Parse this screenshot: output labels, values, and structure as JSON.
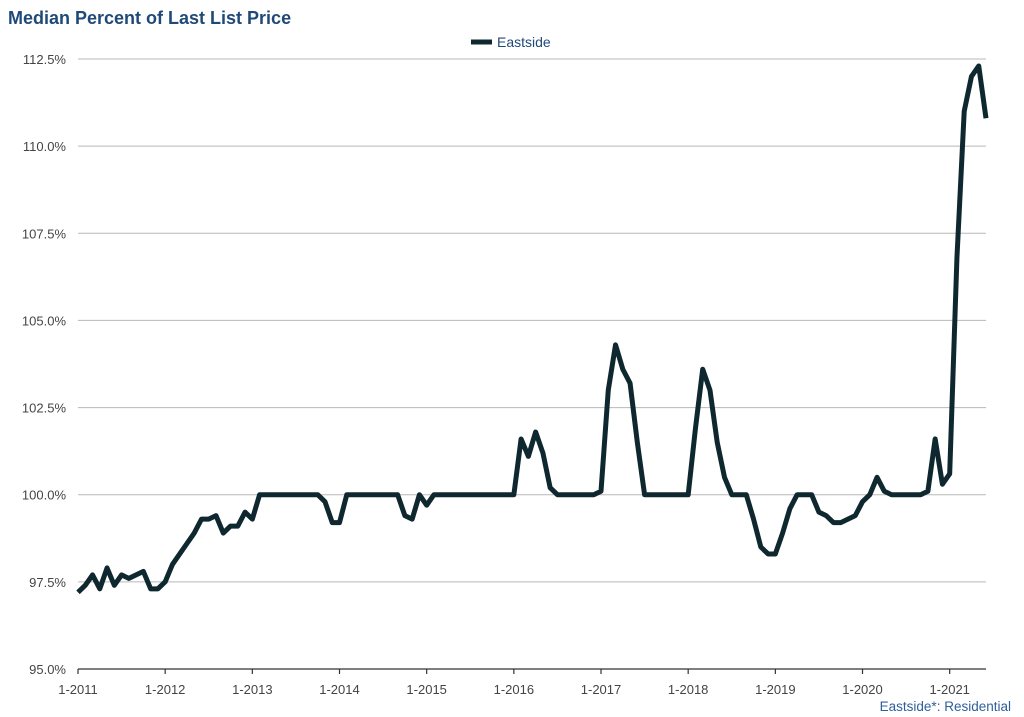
{
  "colors": {
    "title": "#1f4a78",
    "series": "#0f2830",
    "grid": "#b8b8b8",
    "axis": "#333333",
    "tick_text": "#444444",
    "footer": "#2f5f99"
  },
  "chart_data": {
    "type": "line",
    "title": "Median Percent of Last List Price",
    "xlabel": "",
    "ylabel": "",
    "legend": {
      "position": "top-center"
    },
    "grid": {
      "y": true,
      "x": false
    },
    "ylim": [
      95.0,
      112.5
    ],
    "y_ticks": [
      95.0,
      97.5,
      100.0,
      102.5,
      105.0,
      107.5,
      110.0,
      112.5
    ],
    "y_tick_labels": [
      "95.0%",
      "97.5%",
      "100.0%",
      "102.5%",
      "105.0%",
      "107.5%",
      "110.0%",
      "112.5%"
    ],
    "x_tick_labels": [
      "1-2011",
      "1-2012",
      "1-2013",
      "1-2014",
      "1-2015",
      "1-2016",
      "1-2017",
      "1-2018",
      "1-2019",
      "1-2020",
      "1-2021"
    ],
    "x_range": [
      "1-2011",
      "6-2021"
    ],
    "x_dates": [
      "1-2011",
      "2-2011",
      "3-2011",
      "4-2011",
      "5-2011",
      "6-2011",
      "7-2011",
      "8-2011",
      "9-2011",
      "10-2011",
      "11-2011",
      "12-2011",
      "1-2012",
      "2-2012",
      "3-2012",
      "4-2012",
      "5-2012",
      "6-2012",
      "7-2012",
      "8-2012",
      "9-2012",
      "10-2012",
      "11-2012",
      "12-2012",
      "1-2013",
      "2-2013",
      "3-2013",
      "4-2013",
      "5-2013",
      "6-2013",
      "7-2013",
      "8-2013",
      "9-2013",
      "10-2013",
      "11-2013",
      "12-2013",
      "1-2014",
      "2-2014",
      "3-2014",
      "4-2014",
      "5-2014",
      "6-2014",
      "7-2014",
      "8-2014",
      "9-2014",
      "10-2014",
      "11-2014",
      "12-2014",
      "1-2015",
      "2-2015",
      "3-2015",
      "4-2015",
      "5-2015",
      "6-2015",
      "7-2015",
      "8-2015",
      "9-2015",
      "10-2015",
      "11-2015",
      "12-2015",
      "1-2016",
      "2-2016",
      "3-2016",
      "4-2016",
      "5-2016",
      "6-2016",
      "7-2016",
      "8-2016",
      "9-2016",
      "10-2016",
      "11-2016",
      "12-2016",
      "1-2017",
      "2-2017",
      "3-2017",
      "4-2017",
      "5-2017",
      "6-2017",
      "7-2017",
      "8-2017",
      "9-2017",
      "10-2017",
      "11-2017",
      "12-2017",
      "1-2018",
      "2-2018",
      "3-2018",
      "4-2018",
      "5-2018",
      "6-2018",
      "7-2018",
      "8-2018",
      "9-2018",
      "10-2018",
      "11-2018",
      "12-2018",
      "1-2019",
      "2-2019",
      "3-2019",
      "4-2019",
      "5-2019",
      "6-2019",
      "7-2019",
      "8-2019",
      "9-2019",
      "10-2019",
      "11-2019",
      "12-2019",
      "1-2020",
      "2-2020",
      "3-2020",
      "4-2020",
      "5-2020",
      "6-2020",
      "7-2020",
      "8-2020",
      "9-2020",
      "10-2020",
      "11-2020",
      "12-2020",
      "1-2021",
      "2-2021",
      "3-2021",
      "4-2021",
      "5-2021",
      "6-2021"
    ],
    "series": [
      {
        "name": "Eastside",
        "values": [
          97.2,
          97.4,
          97.7,
          97.3,
          97.9,
          97.4,
          97.7,
          97.6,
          97.7,
          97.8,
          97.3,
          97.3,
          97.5,
          98.0,
          98.3,
          98.6,
          98.9,
          99.3,
          99.3,
          99.4,
          98.9,
          99.1,
          99.1,
          99.5,
          99.3,
          100.0,
          100.0,
          100.0,
          100.0,
          100.0,
          100.0,
          100.0,
          100.0,
          100.0,
          99.8,
          99.2,
          99.2,
          100.0,
          100.0,
          100.0,
          100.0,
          100.0,
          100.0,
          100.0,
          100.0,
          99.4,
          99.3,
          100.0,
          99.7,
          100.0,
          100.0,
          100.0,
          100.0,
          100.0,
          100.0,
          100.0,
          100.0,
          100.0,
          100.0,
          100.0,
          100.0,
          101.6,
          101.1,
          101.8,
          101.2,
          100.2,
          100.0,
          100.0,
          100.0,
          100.0,
          100.0,
          100.0,
          100.1,
          103.0,
          104.3,
          103.6,
          103.2,
          101.5,
          100.0,
          100.0,
          100.0,
          100.0,
          100.0,
          100.0,
          100.0,
          101.9,
          103.6,
          103.0,
          101.5,
          100.5,
          100.0,
          100.0,
          100.0,
          99.3,
          98.5,
          98.3,
          98.3,
          98.9,
          99.6,
          100.0,
          100.0,
          100.0,
          99.5,
          99.4,
          99.2,
          99.2,
          99.3,
          99.4,
          99.8,
          100.0,
          100.5,
          100.1,
          100.0,
          100.0,
          100.0,
          100.0,
          100.0,
          100.1,
          101.6,
          100.3,
          100.6,
          106.8,
          111.0,
          112.0,
          112.3,
          110.8
        ]
      }
    ],
    "footer": {
      "name": "Eastside*",
      "suffix": ": Residential"
    }
  }
}
